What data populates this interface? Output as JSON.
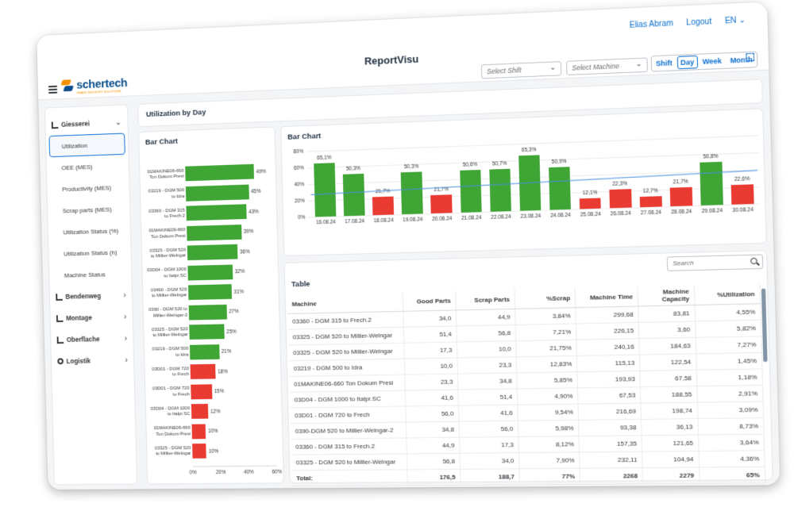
{
  "header": {
    "user_name": "Elias Abram",
    "logout_label": "Logout",
    "language": "EN",
    "app_title": "ReportVisu",
    "logo_text": "schertech",
    "logo_subtext": "SMART INDUSTRY SOLUTIONS",
    "shift_placeholder": "Select Shift",
    "machine_placeholder": "Select Machine",
    "period_options": [
      "Shift",
      "Day",
      "Week",
      "Month"
    ],
    "period_selected": "Day"
  },
  "sidebar": {
    "groups": [
      {
        "label": "Giesserei",
        "expanded": true,
        "icon": "chart-icon",
        "items": [
          "Utilization",
          "OEE (MES)",
          "Productivity (MES)",
          "Scrap parts (MES)",
          "Utilization Status (%)",
          "Utilization Status (h)",
          "Machine Status"
        ],
        "active_item": "Utilization"
      },
      {
        "label": "Bendenweg",
        "expanded": false,
        "icon": "chart-icon"
      },
      {
        "label": "Montage",
        "expanded": false,
        "icon": "chart-icon"
      },
      {
        "label": "Oberflache",
        "expanded": false,
        "icon": "chart-icon"
      },
      {
        "label": "Logistik",
        "expanded": false,
        "icon": "gear-icon"
      }
    ]
  },
  "main": {
    "section_title": "Utilization by Day",
    "left_chart_title": "Bar Chart",
    "right_chart_title": "Bar Chart",
    "table_title": "Table",
    "search_placeholder": "Search"
  },
  "colors": {
    "good": "#3fa535",
    "bad": "#ea3b33",
    "accent": "#0a6ed1",
    "trend": "#4a90e2"
  },
  "chart_data": [
    {
      "type": "bar",
      "orientation": "horizontal",
      "title": "Bar Chart",
      "categories": [
        "01MAKINE06-660 Ton Dokum Presi",
        "03219 - DGM 500 to Idra",
        "03360 - DGM 315 to Frech.2",
        "01MAKINE06-660 Ton Dokum Presi",
        "03325 - DGM 520 to Millier-Welngar",
        "03D04 - DGM 1000 to Italpr.SC",
        "03490 - DGM 520 to Millier-Welngar",
        "0390 - DGM 520 to Millier-Welngar-2",
        "03325 - DGM 520 to Millier-Welngar",
        "03219 - DGM 500 to Idra",
        "03D01 - DGM 720 to Frech",
        "03D01 - DGM 720 to Frech",
        "03D04 - DGM 1000 to Italpr.SC",
        "01MAKINE06-660 Ton Dokum Presi",
        "03325 - DGM 520 to Millier-Welngar"
      ],
      "values": [
        49,
        45,
        43,
        39,
        36,
        32,
        31,
        27,
        25,
        21,
        18,
        15,
        12,
        10,
        10
      ],
      "value_labels": [
        "49%",
        "45%",
        "43%",
        "39%",
        "36%",
        "32%",
        "31%",
        "27%",
        "25%",
        "21%",
        "18%",
        "15%",
        "12%",
        "10%",
        "10%"
      ],
      "xticks": [
        "0%",
        "20%",
        "40%",
        "60%"
      ],
      "xlim": [
        0,
        60
      ],
      "threshold": 20
    },
    {
      "type": "bar",
      "title": "Bar Chart",
      "categories": [
        "16.08.24",
        "17.08.24",
        "18.08.24",
        "19.08.24",
        "20.08.24",
        "21.08.24",
        "22.08.24",
        "23.08.24",
        "24.08.24",
        "25.08.24",
        "26.08.24",
        "27.08.24",
        "28.08.24",
        "29.08.24",
        "30.08.24"
      ],
      "values": [
        65.1,
        50.3,
        21.7,
        50.3,
        21.7,
        50.6,
        50.7,
        65.3,
        50.9,
        12.1,
        22.3,
        12.7,
        21.7,
        50.8,
        22.6
      ],
      "value_labels": [
        "65,1%",
        "50,3%",
        "21,7%",
        "50,3%",
        "21,7%",
        "50,6%",
        "50,7%",
        "65,3%",
        "50,9%",
        "12,1%",
        "22,3%",
        "12,7%",
        "21,7%",
        "50,8%",
        "22,6%"
      ],
      "yticks": [
        "0%",
        "20%",
        "40%",
        "60%",
        "80%"
      ],
      "ylim": [
        0,
        80
      ],
      "trend_line": [
        27,
        39
      ],
      "threshold": 30
    }
  ],
  "table": {
    "columns": [
      "Machine",
      "Good Parts",
      "Scrap Parts",
      "%Scrap",
      "Machine Time",
      "Machine Capacity",
      "%Utilization"
    ],
    "rows": [
      [
        "03360 - DGM 315 to Frech.2",
        "34,0",
        "44,9",
        "3,84%",
        "299,68",
        "83,81",
        "4,55%"
      ],
      [
        "03325 - DGM 520 to Millier-Welngar",
        "51,4",
        "56,8",
        "7,21%",
        "226,15",
        "3,60",
        "5,82%"
      ],
      [
        "03325 - DGM 520 to Millier-Welngar",
        "17,3",
        "10,0",
        "21,75%",
        "240,16",
        "184,63",
        "7,27%"
      ],
      [
        "03219 - DGM 500 to Idra",
        "10,0",
        "23,3",
        "12,83%",
        "115,13",
        "122,54",
        "1,45%"
      ],
      [
        "01MAKINE06-660 Ton Dokum Presi",
        "23,3",
        "34,8",
        "5,85%",
        "193,93",
        "67,58",
        "1,18%"
      ],
      [
        "03D04 - DGM 1000 to Italpr.SC",
        "41,6",
        "51,4",
        "4,90%",
        "67,53",
        "188,55",
        "2,91%"
      ],
      [
        "03D01 - DGM 720 to Frech",
        "56,0",
        "41,6",
        "9,54%",
        "216,69",
        "198,74",
        "3,09%"
      ],
      [
        "0390-DGM 520 to Millier-Welngar-2",
        "34,8",
        "56,0",
        "5,98%",
        "93,38",
        "36,13",
        "8,73%"
      ],
      [
        "03360 - DGM 315 to Frech.2",
        "44,9",
        "17,3",
        "8,12%",
        "157,35",
        "121,65",
        "3,64%"
      ],
      [
        "03325 - DGM 520 to Millier-Welngar",
        "56,8",
        "34,0",
        "7,90%",
        "232,11",
        "104,94",
        "4,36%"
      ]
    ],
    "total": [
      "Total:",
      "176,5",
      "188,7",
      "77%",
      "2268",
      "2279",
      "65%"
    ]
  }
}
